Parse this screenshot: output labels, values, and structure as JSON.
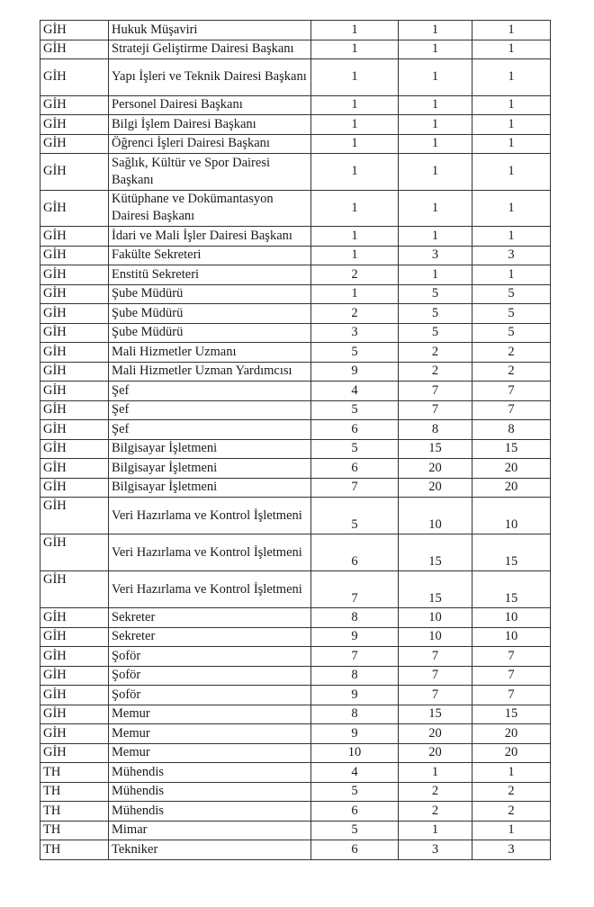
{
  "rows": [
    {
      "group": "GİH",
      "title": "Hukuk Müşaviri",
      "c3": "1",
      "c4": "1",
      "c5": "1",
      "type": "s"
    },
    {
      "group": "GİH",
      "title": "Strateji Geliştirme Dairesi Başkanı",
      "c3": "1",
      "c4": "1",
      "c5": "1",
      "type": "s"
    },
    {
      "group": "GİH",
      "title": "Yapı İşleri ve Teknik Dairesi Başkanı",
      "c3": "1",
      "c4": "1",
      "c5": "1",
      "type": "d"
    },
    {
      "group": "GİH",
      "title": "Personel Dairesi Başkanı",
      "c3": "1",
      "c4": "1",
      "c5": "1",
      "type": "s"
    },
    {
      "group": "GİH",
      "title": "Bilgi İşlem Dairesi Başkanı",
      "c3": "1",
      "c4": "1",
      "c5": "1",
      "type": "s"
    },
    {
      "group": "GİH",
      "title": "Öğrenci İşleri Dairesi Başkanı",
      "c3": "1",
      "c4": "1",
      "c5": "1",
      "type": "s"
    },
    {
      "group": "GİH",
      "title": "Sağlık, Kültür ve Spor Dairesi Başkanı",
      "c3": "1",
      "c4": "1",
      "c5": "1",
      "type": "d"
    },
    {
      "group": "GİH",
      "title": "Kütüphane ve Dokümantasyon Dairesi Başkanı",
      "c3": "1",
      "c4": "1",
      "c5": "1",
      "type": "d"
    },
    {
      "group": "GİH",
      "title": "İdari ve Mali İşler Dairesi Başkanı",
      "c3": "1",
      "c4": "1",
      "c5": "1",
      "type": "s"
    },
    {
      "group": "GİH",
      "title": "Fakülte Sekreteri",
      "c3": "1",
      "c4": "3",
      "c5": "3",
      "type": "s"
    },
    {
      "group": "GİH",
      "title": "Enstitü Sekreteri",
      "c3": "2",
      "c4": "1",
      "c5": "1",
      "type": "s"
    },
    {
      "group": "GİH",
      "title": "Şube Müdürü",
      "c3": "1",
      "c4": "5",
      "c5": "5",
      "type": "s"
    },
    {
      "group": "GİH",
      "title": "Şube Müdürü",
      "c3": "2",
      "c4": "5",
      "c5": "5",
      "type": "s"
    },
    {
      "group": "GİH",
      "title": "Şube Müdürü",
      "c3": "3",
      "c4": "5",
      "c5": "5",
      "type": "s"
    },
    {
      "group": "GİH",
      "title": "Mali Hizmetler Uzmanı",
      "c3": "5",
      "c4": "2",
      "c5": "2",
      "type": "s"
    },
    {
      "group": "GİH",
      "title": "Mali Hizmetler Uzman Yardımcısı",
      "c3": "9",
      "c4": "2",
      "c5": "2",
      "type": "s"
    },
    {
      "group": "GİH",
      "title": "Şef",
      "c3": "4",
      "c4": "7",
      "c5": "7",
      "type": "s"
    },
    {
      "group": "GİH",
      "title": "Şef",
      "c3": "5",
      "c4": "7",
      "c5": "7",
      "type": "s"
    },
    {
      "group": "GİH",
      "title": "Şef",
      "c3": "6",
      "c4": "8",
      "c5": "8",
      "type": "s"
    },
    {
      "group": "GİH",
      "title": "Bilgisayar İşletmeni",
      "c3": "5",
      "c4": "15",
      "c5": "15",
      "type": "s"
    },
    {
      "group": "GİH",
      "title": "Bilgisayar İşletmeni",
      "c3": "6",
      "c4": "20",
      "c5": "20",
      "type": "s"
    },
    {
      "group": "GİH",
      "title": "Bilgisayar İşletmeni",
      "c3": "7",
      "c4": "20",
      "c5": "20",
      "type": "s"
    },
    {
      "group": "GİH",
      "title": "Veri Hazırlama ve Kontrol İşletmeni",
      "c3": "5",
      "c4": "10",
      "c5": "10",
      "type": "v"
    },
    {
      "group": "GİH",
      "title": "Veri Hazırlama ve Kontrol İşletmeni",
      "c3": "6",
      "c4": "15",
      "c5": "15",
      "type": "v"
    },
    {
      "group": "GİH",
      "title": "Veri Hazırlama ve Kontrol İşletmeni",
      "c3": "7",
      "c4": "15",
      "c5": "15",
      "type": "v"
    },
    {
      "group": "GİH",
      "title": "Sekreter",
      "c3": "8",
      "c4": "10",
      "c5": "10",
      "type": "s"
    },
    {
      "group": "GİH",
      "title": "Sekreter",
      "c3": "9",
      "c4": "10",
      "c5": "10",
      "type": "s"
    },
    {
      "group": "GİH",
      "title": "Şoför",
      "c3": "7",
      "c4": "7",
      "c5": "7",
      "type": "s"
    },
    {
      "group": "GİH",
      "title": "Şoför",
      "c3": "8",
      "c4": "7",
      "c5": "7",
      "type": "s"
    },
    {
      "group": "GİH",
      "title": "Şoför",
      "c3": "9",
      "c4": "7",
      "c5": "7",
      "type": "s"
    },
    {
      "group": "GİH",
      "title": "Memur",
      "c3": "8",
      "c4": "15",
      "c5": "15",
      "type": "s"
    },
    {
      "group": "GİH",
      "title": "Memur",
      "c3": "9",
      "c4": "20",
      "c5": "20",
      "type": "s"
    },
    {
      "group": "GİH",
      "title": "Memur",
      "c3": "10",
      "c4": "20",
      "c5": "20",
      "type": "s"
    },
    {
      "group": "TH",
      "title": "Mühendis",
      "c3": "4",
      "c4": "1",
      "c5": "1",
      "type": "s"
    },
    {
      "group": "TH",
      "title": "Mühendis",
      "c3": "5",
      "c4": "2",
      "c5": "2",
      "type": "s"
    },
    {
      "group": "TH",
      "title": "Mühendis",
      "c3": "6",
      "c4": "2",
      "c5": "2",
      "type": "s"
    },
    {
      "group": "TH",
      "title": "Mimar",
      "c3": "5",
      "c4": "1",
      "c5": "1",
      "type": "s"
    },
    {
      "group": "TH",
      "title": "Tekniker",
      "c3": "6",
      "c4": "3",
      "c5": "3",
      "type": "s"
    }
  ]
}
